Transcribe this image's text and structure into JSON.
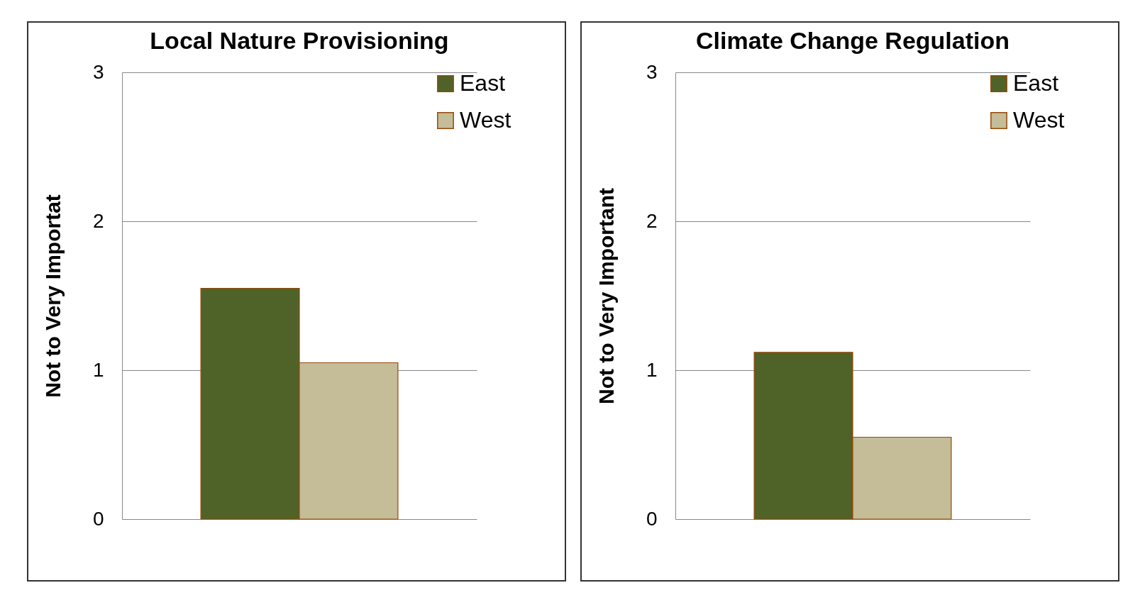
{
  "chart_data": [
    {
      "type": "bar",
      "title": "Local Nature Provisioning",
      "ylabel": "Not to Very Importat",
      "categories": [
        null
      ],
      "ylim": [
        0,
        3
      ],
      "yticks": [
        0,
        1,
        2,
        3
      ],
      "grid": "y",
      "legend": "right",
      "series": [
        {
          "name": "East",
          "color": "#4f6228",
          "values": [
            1.55
          ]
        },
        {
          "name": "West",
          "color": "#c4bd97",
          "values": [
            1.05
          ]
        }
      ]
    },
    {
      "type": "bar",
      "title": "Climate Change Regulation",
      "ylabel": "Not to Very Important",
      "categories": [
        null
      ],
      "ylim": [
        0,
        3
      ],
      "yticks": [
        0,
        1,
        2,
        3
      ],
      "grid": "y",
      "legend": "right",
      "series": [
        {
          "name": "East",
          "color": "#4f6228",
          "values": [
            1.12
          ]
        },
        {
          "name": "West",
          "color": "#c4bd97",
          "values": [
            0.55
          ]
        }
      ]
    }
  ]
}
